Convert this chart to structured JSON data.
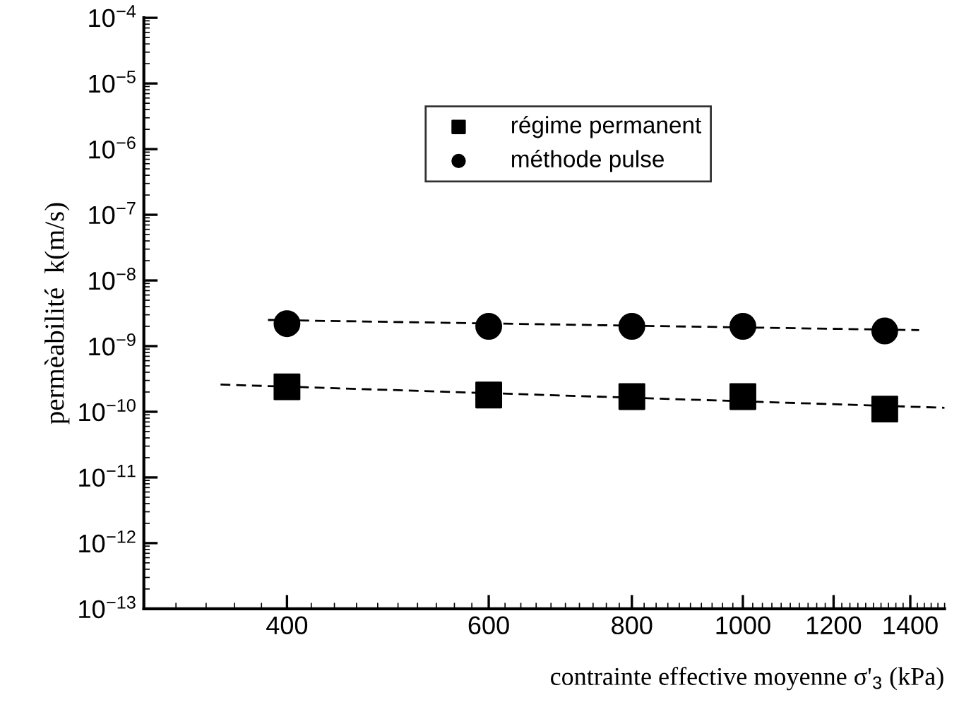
{
  "chart_data": {
    "type": "scatter",
    "xlabel": "contrainte effective moyenne σ'$_{3}$ (kPa)",
    "ylabel": "permèabilité  k(m/s)",
    "log": "xy",
    "xlim": [
      300,
      1500
    ],
    "xticks": [
      400,
      600,
      800,
      1000,
      1200,
      1400
    ],
    "ylim": [
      1e-13,
      0.0001
    ],
    "yticks": [
      {
        "value": 1e-13,
        "label": "10$^{−13}$"
      },
      {
        "value": 1e-12,
        "label": "10$^{−12}$"
      },
      {
        "value": 1e-11,
        "label": "10$^{−11}$"
      },
      {
        "value": 1e-10,
        "label": "10$^{−10}$"
      },
      {
        "value": 1e-09,
        "label": "10$^{−9}$"
      },
      {
        "value": 1e-08,
        "label": "10$^{−8}$"
      },
      {
        "value": 1e-07,
        "label": "10$^{−7}$"
      },
      {
        "value": 1e-06,
        "label": "10$^{−6}$"
      },
      {
        "value": 1e-05,
        "label": "10$^{−5}$"
      },
      {
        "value": 0.0001,
        "label": "10$^{−4}$"
      }
    ],
    "grid": false,
    "legend": "top",
    "series": [
      {
        "name": "régime permanent",
        "marker": "square",
        "color": "#000000",
        "x": [
          400,
          600,
          800,
          1000,
          1330
        ],
        "values": [
          2.4e-10,
          1.8e-10,
          1.7e-10,
          1.7e-10,
          1.1e-10
        ]
      },
      {
        "name": "méthode pulse",
        "marker": "circle",
        "color": "#000000",
        "x": [
          400,
          600,
          800,
          1000,
          1330
        ],
        "values": [
          2.2e-09,
          2e-09,
          2e-09,
          2e-09,
          1.7e-09
        ]
      },
      {
        "type": "line",
        "line_style": "dashed",
        "color": "#000000",
        "x": [
          350,
          1500
        ],
        "values": [
          2.6e-10,
          1.15e-10
        ]
      },
      {
        "type": "line",
        "line_style": "dashed",
        "color": "#000000",
        "x": [
          385,
          1425
        ],
        "values": [
          2.5e-09,
          1.75e-09
        ]
      }
    ]
  }
}
